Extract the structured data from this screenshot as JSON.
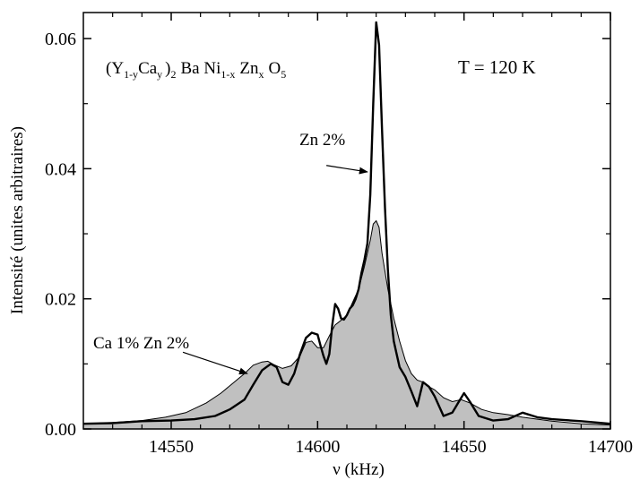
{
  "chart_data": {
    "type": "line",
    "xlabel": "ν (kHz)",
    "ylabel": "Intensité (unites arbitraires)",
    "xlim": [
      14520,
      14700
    ],
    "ylim": [
      0,
      0.064
    ],
    "x_ticks": [
      14550,
      14600,
      14650,
      14700
    ],
    "x_tick_labels": [
      "14550",
      "14600",
      "14650",
      "14700"
    ],
    "y_ticks": [
      0,
      0.02,
      0.04,
      0.06
    ],
    "y_tick_labels": [
      "0.00",
      "0.02",
      "0.04",
      "0.06"
    ],
    "grid": false,
    "annotations": {
      "formula": {
        "Y": "(Y",
        "Y_sub": "1-y",
        "Ca": "Ca",
        "Ca_sub": "y",
        "close": ")",
        "close_sub": "2",
        "Ba": "Ba Ni",
        "Ni_sub": "1-x",
        "Zn": "Zn",
        "Zn_sub": "x",
        "O": "O",
        "O_sub": "5"
      },
      "temperature": "T = 120 K",
      "zn_label": "Zn 2%",
      "ca_zn_label": "Ca 1% Zn 2%"
    },
    "series": [
      {
        "name": "Ca 1% Zn 2%",
        "style": "filled",
        "color": "#c0c0c0",
        "x": [
          14520,
          14530,
          14540,
          14548,
          14555,
          14562,
          14567,
          14571,
          14575,
          14578,
          14581,
          14583,
          14585,
          14588,
          14591,
          14594,
          14596,
          14598,
          14600,
          14602,
          14604,
          14606,
          14608,
          14610,
          14612,
          14614,
          14616,
          14618,
          14619,
          14620,
          14621,
          14622,
          14624,
          14626,
          14628,
          14630,
          14632,
          14634,
          14636,
          14638,
          14640,
          14643,
          14646,
          14649,
          14652,
          14656,
          14660,
          14665,
          14670,
          14680,
          14690,
          14700
        ],
        "y": [
          0.0008,
          0.001,
          0.0013,
          0.0018,
          0.0025,
          0.004,
          0.0055,
          0.007,
          0.0085,
          0.0098,
          0.0103,
          0.0104,
          0.0099,
          0.0093,
          0.0097,
          0.0112,
          0.0133,
          0.0135,
          0.0125,
          0.0125,
          0.0143,
          0.016,
          0.0167,
          0.0175,
          0.0195,
          0.0215,
          0.025,
          0.029,
          0.0315,
          0.032,
          0.031,
          0.027,
          0.0215,
          0.017,
          0.0135,
          0.0105,
          0.0085,
          0.0075,
          0.0072,
          0.0065,
          0.006,
          0.0048,
          0.0042,
          0.0045,
          0.004,
          0.003,
          0.0025,
          0.0022,
          0.0018,
          0.0012,
          0.0008,
          0.0006
        ]
      },
      {
        "name": "Zn 2%",
        "style": "line",
        "color": "#000000",
        "x": [
          14520,
          14530,
          14540,
          14550,
          14558,
          14565,
          14570,
          14575,
          14578,
          14581,
          14584,
          14586,
          14588,
          14590,
          14592,
          14594,
          14596,
          14598,
          14600,
          14601,
          14602,
          14603,
          14604,
          14605,
          14606,
          14607,
          14608,
          14609,
          14610,
          14611,
          14612,
          14613,
          14614,
          14615,
          14616,
          14617,
          14618,
          14619,
          14620,
          14621,
          14622,
          14623,
          14624,
          14625,
          14626,
          14627,
          14628,
          14630,
          14632,
          14634,
          14636,
          14638,
          14640,
          14643,
          14646,
          14648,
          14650,
          14652,
          14655,
          14660,
          14665,
          14670,
          14675,
          14680,
          14690,
          14700
        ],
        "y": [
          0.0008,
          0.0009,
          0.0012,
          0.0013,
          0.0015,
          0.002,
          0.003,
          0.0045,
          0.0068,
          0.009,
          0.01,
          0.0095,
          0.0072,
          0.0068,
          0.0085,
          0.0115,
          0.014,
          0.0148,
          0.0145,
          0.0128,
          0.0112,
          0.01,
          0.0115,
          0.016,
          0.0192,
          0.0185,
          0.017,
          0.0168,
          0.0175,
          0.0185,
          0.019,
          0.02,
          0.0215,
          0.024,
          0.026,
          0.0285,
          0.036,
          0.05,
          0.0625,
          0.059,
          0.046,
          0.034,
          0.0245,
          0.0175,
          0.0135,
          0.0115,
          0.0095,
          0.008,
          0.0058,
          0.0035,
          0.0072,
          0.0065,
          0.005,
          0.002,
          0.0025,
          0.004,
          0.0055,
          0.0042,
          0.002,
          0.0013,
          0.0015,
          0.0025,
          0.0018,
          0.0015,
          0.0012,
          0.0008
        ]
      }
    ],
    "arrows": [
      {
        "label": "Zn 2%",
        "from": [
          14603,
          0.0405
        ],
        "to": [
          14617,
          0.0395
        ]
      },
      {
        "label": "Ca 1% Zn 2%",
        "from": [
          14554,
          0.0118
        ],
        "to": [
          14576,
          0.0085
        ]
      }
    ]
  }
}
